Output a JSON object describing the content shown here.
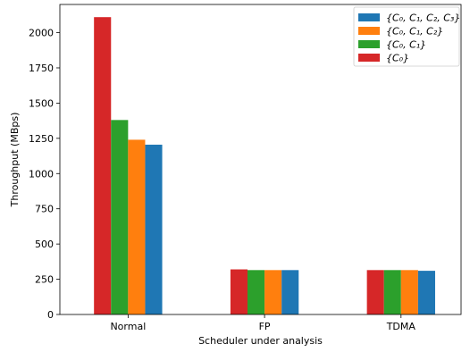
{
  "chart_data": {
    "type": "bar",
    "xlabel": "Scheduler under analysis",
    "ylabel": "Throughput (MBps)",
    "ylim": [
      0,
      2200
    ],
    "yticks": [
      0,
      250,
      500,
      750,
      1000,
      1250,
      1500,
      1750,
      2000
    ],
    "categories": [
      "Normal",
      "FP",
      "TDMA"
    ],
    "series": [
      {
        "name": "{C₀}",
        "color": "#d62728",
        "values": [
          2110,
          320,
          315
        ]
      },
      {
        "name": "{C₀, C₁}",
        "color": "#2ca02c",
        "values": [
          1380,
          315,
          315
        ]
      },
      {
        "name": "{C₀, C₁, C₂}",
        "color": "#ff7f0e",
        "values": [
          1240,
          315,
          315
        ]
      },
      {
        "name": "{C₀, C₁, C₂, C₃}",
        "color": "#1f77b4",
        "values": [
          1205,
          315,
          310
        ]
      }
    ],
    "legend_order": [
      "{C₀, C₁, C₂, C₃}",
      "{C₀, C₁, C₂}",
      "{C₀, C₁}",
      "{C₀}"
    ],
    "legend_position": "top-right",
    "grid": false
  }
}
